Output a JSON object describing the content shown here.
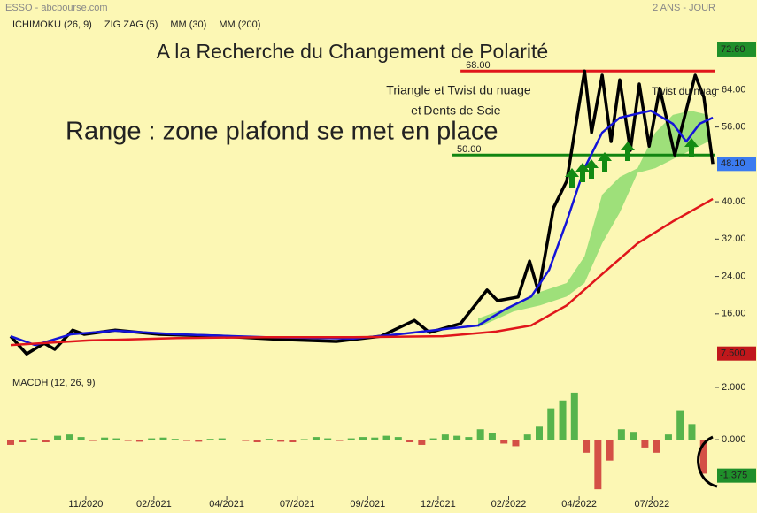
{
  "header": {
    "left": "ESSO - abcbourse.com",
    "right": "2 ANS - JOUR"
  },
  "chart_data": [
    {
      "type": "line",
      "title": "A la Recherche du Changement de Polarité",
      "annotations": [
        "Triangle et Twist du nuage",
        "et",
        "Dents de Scie",
        "Range : zone plafond se met en place",
        "Twist du nuage"
      ],
      "xlim": [
        0,
        30
      ],
      "ylim": [
        4.6,
        83.2
      ],
      "yticks": [
        {
          "value": 16,
          "label": "16.00"
        },
        {
          "value": 24,
          "label": "24.00"
        },
        {
          "value": 32,
          "label": "32.00"
        },
        {
          "value": 40,
          "label": "40.00"
        },
        {
          "value": 56,
          "label": "56.00"
        },
        {
          "value": 64,
          "label": "64.00"
        }
      ],
      "markers": [
        {
          "value": 72.6,
          "label": "72.60",
          "color": "#1f8f2a"
        },
        {
          "value": 48.1,
          "label": "48.10",
          "color": "#3b7bef"
        },
        {
          "value": 7.5,
          "label": "7.500",
          "color": "#c0171b"
        }
      ],
      "hlines": [
        {
          "value": 68,
          "label": "68.00",
          "color": "#e0161b",
          "start": 19.15
        },
        {
          "value": 50,
          "label": "50.00",
          "color": "#118511",
          "start": 18.77
        }
      ],
      "series": [
        {
          "name": "ICHIMOKU (26, 9)",
          "color": "#e0161b",
          "fill": "#9ee07a",
          "x": [
            19.9,
            21.41,
            22.54,
            23.67,
            24.43,
            25.18,
            25.93,
            26.69,
            27.44,
            28.19,
            28.95,
            29.7
          ],
          "values": [
            15.0,
            17.8,
            20.7,
            22.6,
            28.3,
            41.5,
            45.3,
            47.2,
            54.8,
            58.6,
            59.5,
            58.6
          ],
          "lower": [
            13.1,
            16.5,
            17.8,
            19.7,
            22.6,
            31.1,
            37.7,
            46.2,
            47.2,
            49.1,
            51.0,
            52.9
          ]
        },
        {
          "name": "ZIG ZAG (5)",
          "color": "#000000",
          "x": [
            0,
            0.68,
            1.43,
            1.88,
            2.64,
            3.13,
            4.45,
            6.33,
            8.97,
            11.6,
            13.87,
            15.76,
            17.19,
            17.83,
            19.15,
            20.28,
            20.73,
            21.6,
            22.09,
            22.47,
            23.11,
            23.67,
            24.43,
            24.73,
            25.18,
            25.56,
            25.93,
            26.38,
            26.76,
            27.18,
            27.63,
            28.27,
            29.14,
            29.51,
            29.89
          ],
          "values": [
            11.2,
            7.4,
            9.7,
            8.4,
            12.5,
            11.6,
            12.5,
            11.6,
            11.2,
            10.5,
            10.1,
            11.2,
            14.6,
            12.0,
            13.9,
            21.1,
            18.8,
            19.6,
            27.3,
            20.7,
            38.7,
            44.4,
            68.0,
            54.8,
            67.1,
            52.9,
            66.1,
            51.0,
            65.2,
            51.9,
            64.3,
            50.0,
            67.1,
            62.4,
            48.1
          ]
        },
        {
          "name": "MM (30)",
          "color": "#1414d8",
          "x": [
            0,
            1.05,
            2.56,
            4.45,
            7.09,
            10.86,
            14.6,
            16.5,
            18.4,
            19.9,
            21.03,
            22.16,
            22.92,
            23.67,
            24.43,
            25.18,
            25.93,
            27.25,
            28.19,
            28.76,
            29.33,
            29.89
          ],
          "values": [
            11.2,
            9.3,
            11.6,
            12.4,
            11.6,
            11.0,
            10.7,
            11.6,
            12.7,
            13.5,
            16.9,
            19.7,
            25.4,
            35.8,
            47.2,
            54.8,
            58.0,
            59.5,
            56.7,
            52.9,
            56.7,
            58.0
          ]
        },
        {
          "name": "MM (200)",
          "color": "#e0161b",
          "x": [
            0,
            3.32,
            7.09,
            10.86,
            14.6,
            18.4,
            20.66,
            22.16,
            23.67,
            25.18,
            26.69,
            28.19,
            29.89
          ],
          "values": [
            9.3,
            10.3,
            10.8,
            11.0,
            11.0,
            11.2,
            12.2,
            13.5,
            17.8,
            24.5,
            31.1,
            35.8,
            40.6
          ]
        }
      ]
    },
    {
      "type": "bar",
      "title": "MACDH (12, 26, 9)",
      "color": "#3aa83a",
      "negative_color": "#cc3333",
      "xlim": [
        0,
        30
      ],
      "ylim": [
        -2.64,
        2.61
      ],
      "yticks": [
        {
          "value": 2,
          "label": "2.000"
        },
        {
          "value": 0,
          "label": "0.000"
        }
      ],
      "marker": {
        "value": -1.375,
        "label": "-1.375",
        "color": "#1f8f2a"
      },
      "xticks": [
        {
          "value": 3.2,
          "label": "11/2020"
        },
        {
          "value": 6.1,
          "label": "02/2021"
        },
        {
          "value": 9.2,
          "label": "04/2021"
        },
        {
          "value": 12.2,
          "label": "07/2021"
        },
        {
          "value": 15.2,
          "label": "09/2021"
        },
        {
          "value": 18.2,
          "label": "12/2021"
        },
        {
          "value": 21.2,
          "label": "02/2022"
        },
        {
          "value": 24.2,
          "label": "04/2022"
        },
        {
          "value": 27.3,
          "label": "07/2022"
        }
      ],
      "x": [
        0,
        0.5,
        1,
        1.5,
        2,
        2.5,
        3,
        3.5,
        4,
        4.5,
        5,
        5.5,
        6,
        6.5,
        7,
        7.5,
        8,
        8.5,
        9,
        9.5,
        10,
        10.5,
        11,
        11.5,
        12,
        12.5,
        13,
        13.5,
        14,
        14.5,
        15,
        15.5,
        16,
        16.5,
        17,
        17.5,
        18,
        18.5,
        19,
        19.5,
        20,
        20.5,
        21,
        21.5,
        22,
        22.5,
        23,
        23.5,
        24,
        24.5,
        25,
        25.5,
        26,
        26.5,
        27,
        27.5,
        28,
        28.5,
        29,
        29.5
      ],
      "values": [
        -0.2,
        -0.1,
        0.05,
        -0.1,
        0.15,
        0.2,
        0.1,
        -0.05,
        0.08,
        0.05,
        -0.05,
        -0.08,
        0.05,
        0.08,
        0.03,
        -0.05,
        -0.08,
        0.03,
        0.05,
        -0.03,
        -0.05,
        -0.1,
        0.03,
        -0.08,
        -0.1,
        0.02,
        0.1,
        0.05,
        -0.05,
        0.05,
        0.1,
        0.08,
        0.15,
        0.1,
        -0.1,
        -0.2,
        0.05,
        0.2,
        0.15,
        0.1,
        0.4,
        0.25,
        -0.15,
        -0.25,
        0.2,
        0.5,
        1.2,
        1.5,
        1.8,
        -0.5,
        -1.9,
        -0.8,
        0.4,
        0.3,
        -0.3,
        -0.5,
        0.2,
        1.1,
        0.6,
        -1.3
      ]
    }
  ]
}
